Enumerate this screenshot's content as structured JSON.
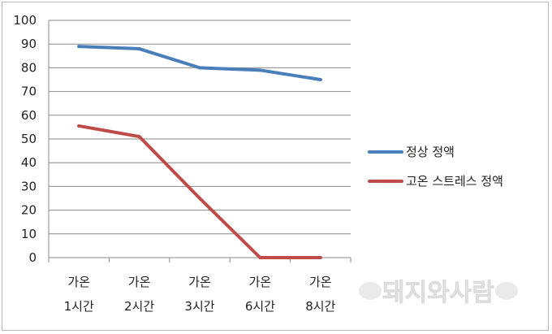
{
  "chart_data": {
    "type": "line",
    "title": "",
    "xlabel": "",
    "ylabel": "",
    "ylim": [
      0,
      100
    ],
    "yticks": [
      0,
      10,
      20,
      30,
      40,
      50,
      60,
      70,
      80,
      90,
      100
    ],
    "grid": true,
    "legend_position": "right",
    "categories": [
      [
        "가온",
        "1시간"
      ],
      [
        "가온",
        "2시간"
      ],
      [
        "가온",
        "3시간"
      ],
      [
        "가온",
        "6시간"
      ],
      [
        "가온",
        "8시간"
      ]
    ],
    "series": [
      {
        "name": "정상 정액",
        "color": "#4a7ebb",
        "values": [
          89,
          88,
          80,
          79,
          75
        ]
      },
      {
        "name": "고온 스트레스 정액",
        "color": "#be4b48",
        "values": [
          55.5,
          51,
          25,
          0,
          0
        ]
      }
    ]
  },
  "watermark": {
    "text": "돼지와사람"
  }
}
